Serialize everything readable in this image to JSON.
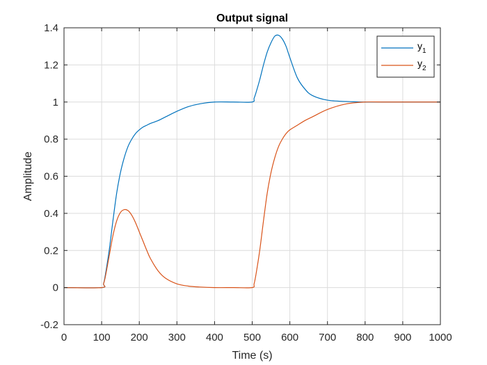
{
  "chart_data": {
    "type": "line",
    "title": "Output signal",
    "xlabel": "Time (s)",
    "ylabel": "Amplitude",
    "xlim": [
      0,
      1000
    ],
    "ylim": [
      -0.2,
      1.4
    ],
    "xticks": [
      0,
      100,
      200,
      300,
      400,
      500,
      600,
      700,
      800,
      900,
      1000
    ],
    "xtick_labels": [
      "0",
      "100",
      "200",
      "300",
      "400",
      "500",
      "600",
      "700",
      "800",
      "900",
      "1000"
    ],
    "yticks": [
      -0.2,
      0,
      0.2,
      0.4,
      0.6,
      0.8,
      1,
      1.2,
      1.4
    ],
    "ytick_labels": [
      "-0.2",
      "0",
      "0.2",
      "0.4",
      "0.6",
      "0.8",
      "1",
      "1.2",
      "1.4"
    ],
    "grid": true,
    "legend_position": "top-right",
    "series": [
      {
        "name": "y",
        "subscript": "1",
        "color": "#0072BD",
        "x": [
          0,
          100,
          105,
          110,
          120,
          130,
          140,
          150,
          160,
          170,
          180,
          190,
          200,
          210,
          220,
          230,
          250,
          270,
          300,
          330,
          360,
          400,
          450,
          500,
          505,
          510,
          520,
          530,
          540,
          550,
          560,
          570,
          580,
          590,
          600,
          620,
          640,
          660,
          700,
          750,
          800,
          850,
          900,
          1000
        ],
        "y": [
          0,
          0,
          0.02,
          0.07,
          0.2,
          0.36,
          0.51,
          0.62,
          0.7,
          0.76,
          0.8,
          0.83,
          0.85,
          0.865,
          0.875,
          0.885,
          0.9,
          0.92,
          0.95,
          0.975,
          0.99,
          1.0,
          1.0,
          1.0,
          1.02,
          1.05,
          1.12,
          1.2,
          1.27,
          1.32,
          1.355,
          1.36,
          1.34,
          1.3,
          1.24,
          1.13,
          1.07,
          1.035,
          1.01,
          1.003,
          1.0,
          1.0,
          1.0,
          1.0
        ]
      },
      {
        "name": "y",
        "subscript": "2",
        "color": "#D95319",
        "x": [
          0,
          100,
          105,
          110,
          120,
          130,
          140,
          150,
          160,
          170,
          180,
          190,
          200,
          210,
          220,
          230,
          250,
          270,
          300,
          330,
          360,
          400,
          450,
          500,
          505,
          510,
          520,
          530,
          540,
          550,
          560,
          570,
          580,
          590,
          600,
          620,
          640,
          660,
          700,
          750,
          800,
          850,
          900,
          1000
        ],
        "y": [
          0,
          0,
          0.02,
          0.06,
          0.17,
          0.28,
          0.36,
          0.405,
          0.42,
          0.415,
          0.39,
          0.35,
          0.3,
          0.25,
          0.2,
          0.155,
          0.09,
          0.05,
          0.02,
          0.008,
          0.003,
          0.0,
          0.0,
          0.0,
          0.02,
          0.07,
          0.2,
          0.36,
          0.51,
          0.62,
          0.7,
          0.76,
          0.8,
          0.83,
          0.85,
          0.875,
          0.9,
          0.92,
          0.96,
          0.99,
          1.0,
          1.0,
          1.0,
          1.0
        ]
      }
    ]
  }
}
